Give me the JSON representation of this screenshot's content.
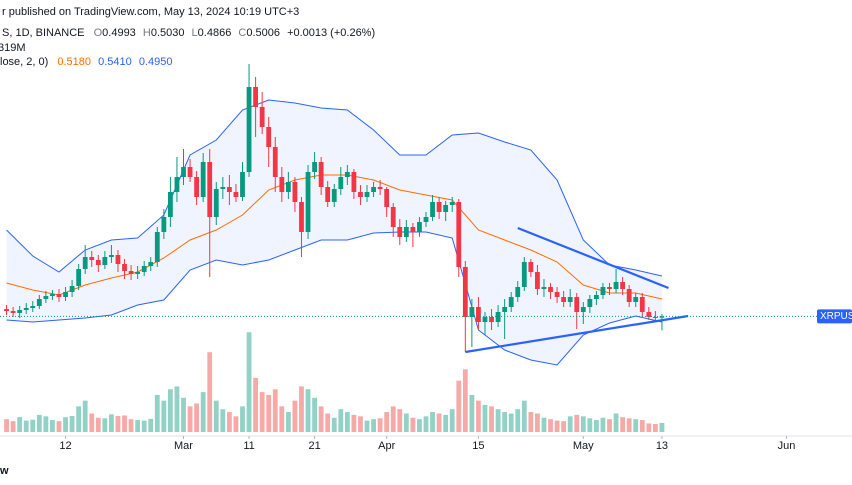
{
  "header": {
    "published": "r published on TradingView.com, May 13, 2024 10:19 UTC+3",
    "symbol": "S, 1D, BINANCE",
    "ohlc_labels": [
      "O",
      "H",
      "L",
      "C"
    ],
    "ohlc": [
      0.4993,
      {
        "value": 0.503,
        "label": "0.5030"
      },
      0.4866,
      0.5006
    ],
    "change": "+0.0013 (+0.26%)",
    "volume_label": "319M",
    "indicator": "lose, 2, 0)",
    "indicator_values": [
      {
        "value": 0.518,
        "label": "0.5180"
      },
      {
        "value": 0.541,
        "label": "0.5410"
      },
      {
        "value": 0.495,
        "label": "0.4950"
      }
    ],
    "footer": "w"
  },
  "chart_data": {
    "type": "candlestick",
    "x": [
      "2024-02-03",
      "2024-02-04",
      "2024-02-05",
      "2024-02-06",
      "2024-02-07",
      "2024-02-08",
      "2024-02-09",
      "2024-02-10",
      "2024-02-11",
      "2024-02-12",
      "2024-02-13",
      "2024-02-14",
      "2024-02-15",
      "2024-02-16",
      "2024-02-17",
      "2024-02-18",
      "2024-02-19",
      "2024-02-20",
      "2024-02-21",
      "2024-02-22",
      "2024-02-23",
      "2024-02-24",
      "2024-02-25",
      "2024-02-26",
      "2024-02-27",
      "2024-02-28",
      "2024-02-29",
      "2024-03-01",
      "2024-03-02",
      "2024-03-03",
      "2024-03-04",
      "2024-03-05",
      "2024-03-06",
      "2024-03-07",
      "2024-03-08",
      "2024-03-09",
      "2024-03-10",
      "2024-03-11",
      "2024-03-12",
      "2024-03-13",
      "2024-03-14",
      "2024-03-15",
      "2024-03-16",
      "2024-03-17",
      "2024-03-18",
      "2024-03-19",
      "2024-03-20",
      "2024-03-21",
      "2024-03-22",
      "2024-03-23",
      "2024-03-24",
      "2024-03-25",
      "2024-03-26",
      "2024-03-27",
      "2024-03-28",
      "2024-03-29",
      "2024-03-30",
      "2024-03-31",
      "2024-04-01",
      "2024-04-02",
      "2024-04-03",
      "2024-04-04",
      "2024-04-05",
      "2024-04-06",
      "2024-04-07",
      "2024-04-08",
      "2024-04-09",
      "2024-04-10",
      "2024-04-11",
      "2024-04-12",
      "2024-04-13",
      "2024-04-14",
      "2024-04-15",
      "2024-04-16",
      "2024-04-17",
      "2024-04-18",
      "2024-04-19",
      "2024-04-20",
      "2024-04-21",
      "2024-04-22",
      "2024-04-23",
      "2024-04-24",
      "2024-04-25",
      "2024-04-26",
      "2024-04-27",
      "2024-04-28",
      "2024-04-29",
      "2024-04-30",
      "2024-05-01",
      "2024-05-02",
      "2024-05-03",
      "2024-05-04",
      "2024-05-05",
      "2024-05-06",
      "2024-05-07",
      "2024-05-08",
      "2024-05-09",
      "2024-05-10",
      "2024-05-11",
      "2024-05-12",
      "2024-05-13"
    ],
    "ohlc": [
      [
        0.508,
        0.512,
        0.502,
        0.506
      ],
      [
        0.506,
        0.51,
        0.5,
        0.504
      ],
      [
        0.504,
        0.511,
        0.499,
        0.507
      ],
      [
        0.507,
        0.514,
        0.503,
        0.509
      ],
      [
        0.509,
        0.516,
        0.505,
        0.511
      ],
      [
        0.511,
        0.522,
        0.508,
        0.518
      ],
      [
        0.518,
        0.526,
        0.514,
        0.521
      ],
      [
        0.521,
        0.527,
        0.517,
        0.523
      ],
      [
        0.523,
        0.528,
        0.515,
        0.52
      ],
      [
        0.52,
        0.53,
        0.516,
        0.525
      ],
      [
        0.525,
        0.537,
        0.52,
        0.531
      ],
      [
        0.531,
        0.553,
        0.527,
        0.548
      ],
      [
        0.548,
        0.572,
        0.543,
        0.56
      ],
      [
        0.56,
        0.566,
        0.55,
        0.557
      ],
      [
        0.557,
        0.562,
        0.545,
        0.552
      ],
      [
        0.552,
        0.566,
        0.548,
        0.56
      ],
      [
        0.56,
        0.572,
        0.554,
        0.562
      ],
      [
        0.562,
        0.567,
        0.545,
        0.553
      ],
      [
        0.553,
        0.558,
        0.538,
        0.546
      ],
      [
        0.546,
        0.552,
        0.537,
        0.543
      ],
      [
        0.543,
        0.551,
        0.538,
        0.545
      ],
      [
        0.545,
        0.556,
        0.541,
        0.551
      ],
      [
        0.551,
        0.56,
        0.546,
        0.555
      ],
      [
        0.555,
        0.59,
        0.55,
        0.585
      ],
      [
        0.585,
        0.608,
        0.578,
        0.6
      ],
      [
        0.6,
        0.64,
        0.59,
        0.625
      ],
      [
        0.625,
        0.66,
        0.615,
        0.64
      ],
      [
        0.64,
        0.668,
        0.632,
        0.65
      ],
      [
        0.65,
        0.658,
        0.635,
        0.64
      ],
      [
        0.64,
        0.646,
        0.612,
        0.62
      ],
      [
        0.62,
        0.664,
        0.615,
        0.655
      ],
      [
        0.655,
        0.668,
        0.54,
        0.6
      ],
      [
        0.6,
        0.635,
        0.592,
        0.628
      ],
      [
        0.628,
        0.64,
        0.618,
        0.63
      ],
      [
        0.63,
        0.642,
        0.612,
        0.625
      ],
      [
        0.625,
        0.633,
        0.615,
        0.62
      ],
      [
        0.62,
        0.655,
        0.616,
        0.645
      ],
      [
        0.645,
        0.753,
        0.64,
        0.73
      ],
      [
        0.73,
        0.74,
        0.68,
        0.71
      ],
      [
        0.71,
        0.725,
        0.683,
        0.69
      ],
      [
        0.69,
        0.7,
        0.65,
        0.67
      ],
      [
        0.67,
        0.68,
        0.625,
        0.64
      ],
      [
        0.64,
        0.65,
        0.615,
        0.625
      ],
      [
        0.625,
        0.645,
        0.618,
        0.635
      ],
      [
        0.635,
        0.64,
        0.605,
        0.615
      ],
      [
        0.615,
        0.62,
        0.56,
        0.585
      ],
      [
        0.585,
        0.652,
        0.578,
        0.645
      ],
      [
        0.645,
        0.665,
        0.638,
        0.655
      ],
      [
        0.655,
        0.66,
        0.622,
        0.63
      ],
      [
        0.63,
        0.636,
        0.61,
        0.615
      ],
      [
        0.615,
        0.633,
        0.61,
        0.628
      ],
      [
        0.628,
        0.65,
        0.622,
        0.64
      ],
      [
        0.64,
        0.652,
        0.632,
        0.645
      ],
      [
        0.645,
        0.648,
        0.618,
        0.625
      ],
      [
        0.625,
        0.632,
        0.612,
        0.62
      ],
      [
        0.62,
        0.632,
        0.615,
        0.625
      ],
      [
        0.625,
        0.635,
        0.62,
        0.63
      ],
      [
        0.63,
        0.637,
        0.622,
        0.628
      ],
      [
        0.628,
        0.63,
        0.6,
        0.61
      ],
      [
        0.61,
        0.614,
        0.58,
        0.59
      ],
      [
        0.59,
        0.598,
        0.572,
        0.58
      ],
      [
        0.58,
        0.597,
        0.575,
        0.59
      ],
      [
        0.59,
        0.594,
        0.57,
        0.585
      ],
      [
        0.585,
        0.6,
        0.58,
        0.595
      ],
      [
        0.595,
        0.605,
        0.59,
        0.6
      ],
      [
        0.6,
        0.622,
        0.596,
        0.615
      ],
      [
        0.615,
        0.62,
        0.598,
        0.605
      ],
      [
        0.605,
        0.616,
        0.596,
        0.612
      ],
      [
        0.612,
        0.62,
        0.605,
        0.615
      ],
      [
        0.615,
        0.618,
        0.54,
        0.55
      ],
      [
        0.55,
        0.556,
        0.465,
        0.5
      ],
      [
        0.5,
        0.518,
        0.47,
        0.51
      ],
      [
        0.51,
        0.52,
        0.488,
        0.495
      ],
      [
        0.495,
        0.505,
        0.482,
        0.5
      ],
      [
        0.5,
        0.508,
        0.487,
        0.495
      ],
      [
        0.495,
        0.512,
        0.49,
        0.505
      ],
      [
        0.505,
        0.518,
        0.478,
        0.51
      ],
      [
        0.51,
        0.525,
        0.505,
        0.52
      ],
      [
        0.52,
        0.536,
        0.515,
        0.53
      ],
      [
        0.53,
        0.56,
        0.526,
        0.555
      ],
      [
        0.555,
        0.558,
        0.54,
        0.545
      ],
      [
        0.545,
        0.552,
        0.522,
        0.528
      ],
      [
        0.528,
        0.538,
        0.52,
        0.53
      ],
      [
        0.53,
        0.534,
        0.518,
        0.525
      ],
      [
        0.525,
        0.53,
        0.514,
        0.52
      ],
      [
        0.52,
        0.526,
        0.51,
        0.515
      ],
      [
        0.515,
        0.528,
        0.51,
        0.52
      ],
      [
        0.52,
        0.524,
        0.488,
        0.505
      ],
      [
        0.505,
        0.515,
        0.493,
        0.51
      ],
      [
        0.51,
        0.522,
        0.504,
        0.518
      ],
      [
        0.518,
        0.526,
        0.512,
        0.522
      ],
      [
        0.522,
        0.534,
        0.518,
        0.53
      ],
      [
        0.53,
        0.534,
        0.522,
        0.528
      ],
      [
        0.528,
        0.548,
        0.524,
        0.535
      ],
      [
        0.535,
        0.54,
        0.522,
        0.528
      ],
      [
        0.528,
        0.532,
        0.51,
        0.515
      ],
      [
        0.515,
        0.524,
        0.51,
        0.52
      ],
      [
        0.52,
        0.524,
        0.5,
        0.505
      ],
      [
        0.505,
        0.51,
        0.497,
        0.5
      ],
      [
        0.5,
        0.506,
        0.495,
        0.4993
      ],
      [
        0.4993,
        0.503,
        0.4866,
        0.5006
      ]
    ],
    "volume": [
      450,
      380,
      520,
      400,
      430,
      600,
      550,
      420,
      380,
      520,
      560,
      900,
      1100,
      650,
      500,
      480,
      620,
      560,
      580,
      450,
      420,
      400,
      460,
      1300,
      1100,
      1500,
      1600,
      1200,
      900,
      1000,
      1400,
      2800,
      1100,
      800,
      700,
      550,
      900,
      3500,
      1900,
      1400,
      1300,
      1500,
      900,
      700,
      1100,
      1600,
      1500,
      1200,
      900,
      650,
      500,
      800,
      700,
      600,
      550,
      400,
      450,
      480,
      700,
      900,
      800,
      650,
      500,
      450,
      550,
      700,
      650,
      600,
      800,
      1800,
      2200,
      1300,
      1100,
      950,
      900,
      800,
      700,
      650,
      800,
      1100,
      700,
      650,
      500,
      450,
      400,
      380,
      550,
      600,
      550,
      480,
      420,
      500,
      450,
      650,
      520,
      480,
      450,
      420,
      300,
      280,
      319
    ],
    "up_color": "#089981",
    "down_color": "#f23645",
    "volume_up_color": "#92d2c6",
    "volume_down_color": "#f7a9a7",
    "xlim": [
      "2024-02-02",
      "2024-06-11"
    ],
    "xticks": [
      {
        "value": "2024-02-12",
        "label": "12"
      },
      {
        "value": "2024-03-01",
        "label": "Mar"
      },
      {
        "value": "2024-03-11",
        "label": "11"
      },
      {
        "value": "2024-03-21",
        "label": "21"
      },
      {
        "value": "2024-04-01",
        "label": "Apr"
      },
      {
        "value": "2024-04-15",
        "label": "15"
      },
      {
        "value": "2024-05-01",
        "label": "May"
      },
      {
        "value": "2024-05-13",
        "label": "13"
      },
      {
        "value": "2024-06-01",
        "label": "Jun"
      }
    ],
    "ylim": [
      0.377,
      0.817
    ],
    "volume_ylim": [
      0,
      4000
    ],
    "bands": {
      "x": [
        "2024-02-03",
        "2024-02-07",
        "2024-02-11",
        "2024-02-15",
        "2024-02-19",
        "2024-02-23",
        "2024-02-27",
        "2024-03-02",
        "2024-03-06",
        "2024-03-10",
        "2024-03-14",
        "2024-03-18",
        "2024-03-22",
        "2024-03-26",
        "2024-03-30",
        "2024-04-03",
        "2024-04-07",
        "2024-04-11",
        "2024-04-15",
        "2024-04-19",
        "2024-04-23",
        "2024-04-27",
        "2024-05-01",
        "2024-05-05",
        "2024-05-09",
        "2024-05-13"
      ],
      "upper": [
        0.587,
        0.561,
        0.545,
        0.567,
        0.577,
        0.579,
        0.602,
        0.662,
        0.677,
        0.707,
        0.717,
        0.714,
        0.709,
        0.707,
        0.687,
        0.662,
        0.662,
        0.682,
        0.684,
        0.675,
        0.667,
        0.637,
        0.577,
        0.552,
        0.547,
        0.541
      ],
      "middle": [
        0.534,
        0.527,
        0.522,
        0.532,
        0.539,
        0.545,
        0.559,
        0.577,
        0.587,
        0.602,
        0.627,
        0.637,
        0.642,
        0.642,
        0.637,
        0.627,
        0.622,
        0.617,
        0.587,
        0.577,
        0.567,
        0.555,
        0.532,
        0.524,
        0.524,
        0.518
      ],
      "lower": [
        0.497,
        0.495,
        0.497,
        0.499,
        0.502,
        0.512,
        0.517,
        0.547,
        0.557,
        0.552,
        0.557,
        0.567,
        0.577,
        0.577,
        0.584,
        0.585,
        0.585,
        0.579,
        0.487,
        0.467,
        0.457,
        0.452,
        0.482,
        0.494,
        0.501,
        0.495
      ],
      "color": "#2962ff",
      "middle_color": "#ff6d00"
    },
    "trendlines": [
      {
        "x": [
          "2024-04-21",
          "2024-05-14"
        ],
        "y": [
          0.589,
          0.529
        ]
      },
      {
        "x": [
          "2024-04-13",
          "2024-05-17"
        ],
        "y": [
          0.465,
          0.501
        ]
      }
    ],
    "trendline_color": "#2962ff",
    "last_price_tag": "XRPUSD"
  }
}
